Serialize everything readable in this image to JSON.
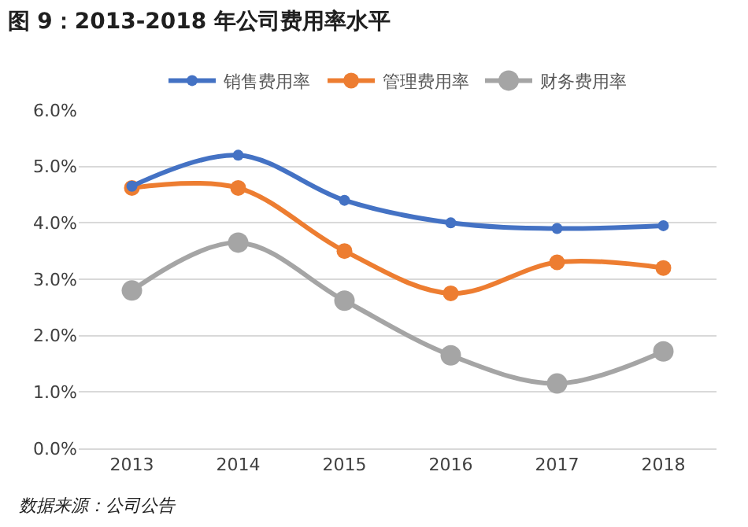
{
  "chart_data": {
    "type": "line",
    "title": "图 9：2013-2018 年公司费用率水平",
    "categories": [
      "2013",
      "2014",
      "2015",
      "2016",
      "2017",
      "2018"
    ],
    "series": [
      {
        "name": "销售费用率",
        "color": "#4472c4",
        "values": [
          4.65,
          5.2,
          4.4,
          4.0,
          3.9,
          3.95
        ]
      },
      {
        "name": "管理费用率",
        "color": "#ed7d31",
        "values": [
          4.62,
          4.62,
          3.5,
          2.75,
          3.3,
          3.2
        ]
      },
      {
        "name": "财务费用率",
        "color": "#a5a5a5",
        "values": [
          2.8,
          3.65,
          2.62,
          1.65,
          1.15,
          1.72
        ]
      }
    ],
    "ylim": [
      0,
      6
    ],
    "yticks": [
      {
        "value": 0,
        "label": "0.0%"
      },
      {
        "value": 1,
        "label": "1.0%"
      },
      {
        "value": 2,
        "label": "2.0%"
      },
      {
        "value": 3,
        "label": "3.0%"
      },
      {
        "value": 4,
        "label": "4.0%"
      },
      {
        "value": 5,
        "label": "5.0%"
      },
      {
        "value": 6,
        "label": "6.0%"
      }
    ],
    "grid": "y",
    "legend": "top",
    "marker": "circle",
    "line_style": "solid",
    "annotations": [
      "数据来源：公司公告"
    ]
  }
}
